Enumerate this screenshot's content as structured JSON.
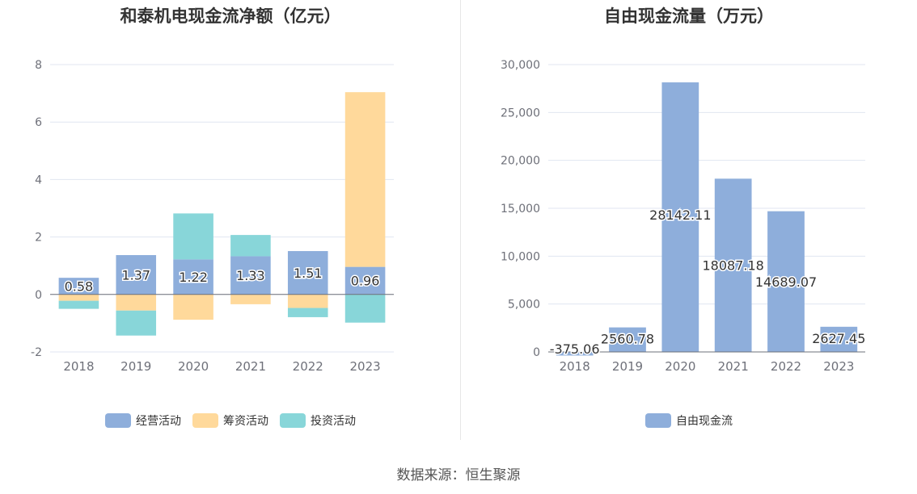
{
  "chart_data": [
    {
      "type": "bar",
      "title": "和泰机电现金流净额（亿元）",
      "categories": [
        "2018",
        "2019",
        "2020",
        "2021",
        "2022",
        "2023"
      ],
      "ylim": [
        -2,
        8
      ],
      "yticks": [
        "-2",
        "0",
        "2",
        "4",
        "6",
        "8"
      ],
      "stacked": true,
      "grid": true,
      "legend_position": "bottom",
      "series": [
        {
          "name": "经营活动",
          "color": "#8eaedb",
          "values": [
            0.58,
            1.37,
            1.22,
            1.33,
            1.51,
            0.96
          ],
          "labels": [
            "0.58",
            "1.37",
            "1.22",
            "1.33",
            "1.51",
            "0.96"
          ]
        },
        {
          "name": "筹资活动",
          "color": "#ffd99b",
          "values": [
            -0.22,
            -0.56,
            -0.88,
            -0.34,
            -0.47,
            6.08
          ]
        },
        {
          "name": "投资活动",
          "color": "#88d6d9",
          "values": [
            -0.28,
            -0.87,
            1.6,
            0.74,
            -0.32,
            -0.98
          ]
        }
      ]
    },
    {
      "type": "bar",
      "title": "自由现金流量（万元）",
      "categories": [
        "2018",
        "2019",
        "2020",
        "2021",
        "2022",
        "2023"
      ],
      "ylim": [
        0,
        30000
      ],
      "yticks": [
        "0",
        "5,000",
        "10,000",
        "15,000",
        "20,000",
        "25,000",
        "30,000"
      ],
      "grid": true,
      "legend_position": "bottom",
      "series": [
        {
          "name": "自由现金流",
          "color": "#8eaedb",
          "values": [
            -375.06,
            2560.78,
            28142.11,
            18087.18,
            14689.07,
            2627.45
          ],
          "labels": [
            "-375.06",
            "2560.78",
            "28142.11",
            "18087.18",
            "14689.07",
            "2627.45"
          ]
        }
      ]
    }
  ],
  "source_text": "数据来源：恒生聚源"
}
